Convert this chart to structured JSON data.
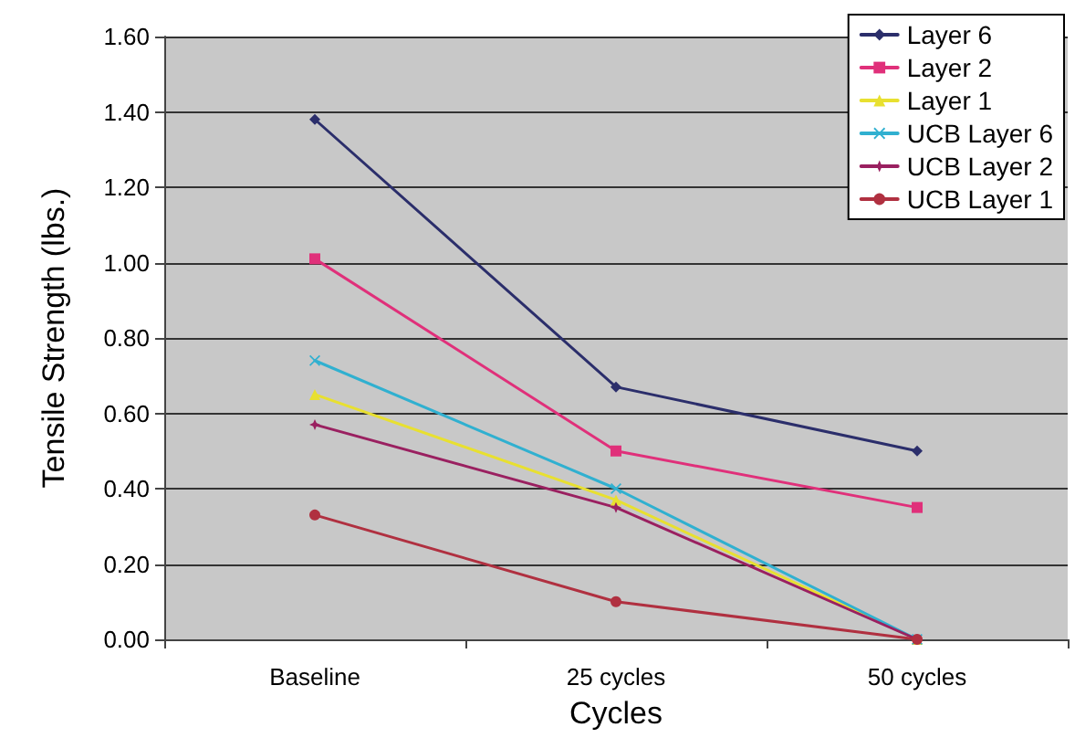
{
  "chart_data": {
    "type": "line",
    "xlabel": "Cycles",
    "ylabel": "Tensile Strength (lbs.)",
    "categories": [
      "Baseline",
      "25 cycles",
      "50 cycles"
    ],
    "series": [
      {
        "name": "Layer 6",
        "color": "#2b2e6b",
        "marker": "diamond",
        "values": [
          1.38,
          0.67,
          0.5
        ]
      },
      {
        "name": "Layer 2",
        "color": "#e0307a",
        "marker": "square",
        "values": [
          1.01,
          0.5,
          0.35
        ]
      },
      {
        "name": "Layer 1",
        "color": "#e8e030",
        "marker": "triangle",
        "values": [
          0.65,
          0.37,
          0
        ]
      },
      {
        "name": "UCB Layer 6",
        "color": "#30b0d0",
        "marker": "cross",
        "values": [
          0.74,
          0.4,
          0
        ]
      },
      {
        "name": "UCB Layer 2",
        "color": "#9a2060",
        "marker": "star",
        "values": [
          0.57,
          0.35,
          0
        ]
      },
      {
        "name": "UCB Layer 1",
        "color": "#b03040",
        "marker": "circle",
        "values": [
          0.33,
          0.1,
          0
        ]
      }
    ],
    "ylim": [
      0,
      1.6
    ],
    "yticks": [
      {
        "value": 0,
        "label": "0.00"
      },
      {
        "value": 0.2,
        "label": "0.20"
      },
      {
        "value": 0.4,
        "label": "0.40"
      },
      {
        "value": 0.6,
        "label": "0.60"
      },
      {
        "value": 0.8,
        "label": "0.80"
      },
      {
        "value": 1,
        "label": "1.00"
      },
      {
        "value": 1.2,
        "label": "1.20"
      },
      {
        "value": 1.4,
        "label": "1.40"
      },
      {
        "value": 1.6,
        "label": "1.60"
      }
    ],
    "grid": "y",
    "legend": "top right",
    "line_style": "solid"
  }
}
